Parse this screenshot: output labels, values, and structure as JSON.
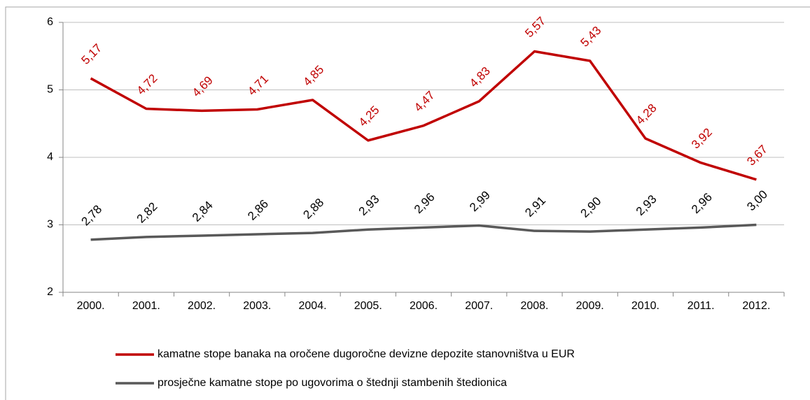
{
  "chart_data": {
    "type": "line",
    "categories": [
      "2000.",
      "2001.",
      "2002.",
      "2003.",
      "2004.",
      "2005.",
      "2006.",
      "2007.",
      "2008.",
      "2009.",
      "2010.",
      "2011.",
      "2012."
    ],
    "series": [
      {
        "name": "kamatne stope banaka na oročene dugoročne devizne depozite stanovništva u EUR",
        "color": "#c00000",
        "values": [
          5.17,
          4.72,
          4.69,
          4.71,
          4.85,
          4.25,
          4.47,
          4.83,
          5.57,
          5.43,
          4.28,
          3.92,
          3.67
        ],
        "value_labels": [
          "5,17",
          "4,72",
          "4,69",
          "4,71",
          "4,85",
          "4,25",
          "4,47",
          "4,83",
          "5,57",
          "5,43",
          "4,28",
          "3,92",
          "3,67"
        ]
      },
      {
        "name": "prosječne kamatne stope po ugovorima o štednji stambenih štedionica",
        "color": "#595959",
        "values": [
          2.78,
          2.82,
          2.84,
          2.86,
          2.88,
          2.93,
          2.96,
          2.99,
          2.91,
          2.9,
          2.93,
          2.96,
          3.0
        ],
        "value_labels": [
          "2,78",
          "2,82",
          "2,84",
          "2,86",
          "2,88",
          "2,93",
          "2,96",
          "2,99",
          "2,91",
          "2,90",
          "2,93",
          "2,96",
          "3,00"
        ]
      }
    ],
    "ylim": [
      2,
      6
    ],
    "yticks": [
      2,
      3,
      4,
      5,
      6
    ],
    "grid": true,
    "legend": "bottom"
  }
}
